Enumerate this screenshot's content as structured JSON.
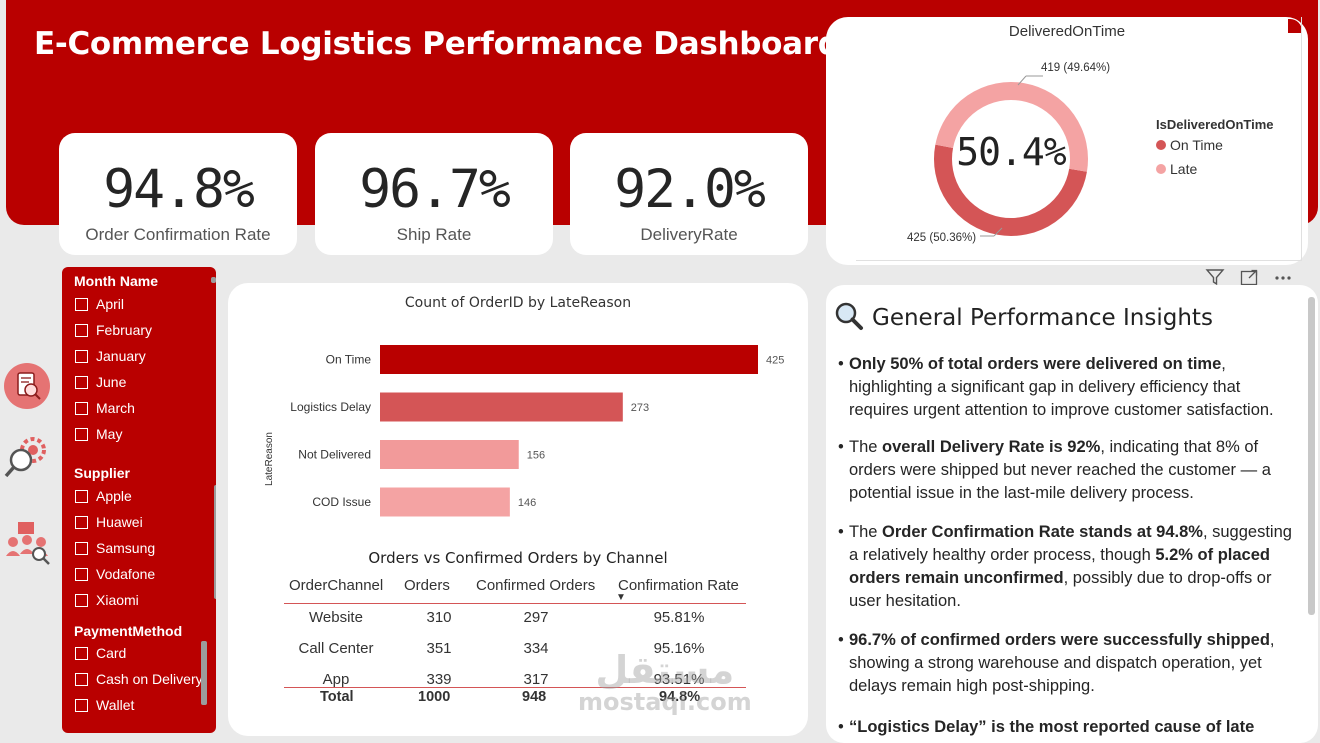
{
  "dashboard": {
    "title": "E-Commerce Logistics Performance Dashboard"
  },
  "kpis": [
    {
      "value": "94.8%",
      "label": "Order Confirmation Rate"
    },
    {
      "value": "96.7%",
      "label": "Ship Rate"
    },
    {
      "value": "92.0%",
      "label": "DeliveryRate"
    }
  ],
  "donut": {
    "title": "DeliveredOnTime",
    "center_label": "50.4%",
    "legend_title": "IsDeliveredOnTime",
    "callout_late": "419 (49.64%)",
    "callout_ontime": "425 (50.36%)"
  },
  "slicers": {
    "month": {
      "title": "Month Name",
      "items": [
        "April",
        "February",
        "January",
        "June",
        "March",
        "May"
      ]
    },
    "supplier": {
      "title": "Supplier",
      "items": [
        "Apple",
        "Huawei",
        "Samsung",
        "Vodafone",
        "Xiaomi"
      ]
    },
    "payment": {
      "title": "PaymentMethod",
      "items": [
        "Card",
        "Cash on Delivery",
        "Wallet"
      ]
    }
  },
  "toolbar": {
    "filter_icon": "filter-icon",
    "focus_icon": "focus-mode-icon",
    "more_icon": "more-options-icon"
  },
  "side_nav": [
    "report-icon",
    "settings-search-icon",
    "team-icon"
  ],
  "chart_data": [
    {
      "type": "pie",
      "title": "DeliveredOnTime",
      "legend_title": "IsDeliveredOnTime",
      "categories": [
        "On Time",
        "Late"
      ],
      "values": [
        425,
        419
      ],
      "labels": [
        "425 (50.36%)",
        "419 (49.64%)"
      ],
      "colors": [
        "#d45556",
        "#f4a3a3"
      ],
      "center_label": "50.4%",
      "legend_position": "right"
    },
    {
      "type": "bar",
      "orientation": "horizontal",
      "title": "Count of OrderID by LateReason",
      "ylabel": "LateReason",
      "categories": [
        "On Time",
        "Logistics Delay",
        "Not Delivered",
        "COD Issue"
      ],
      "values": [
        425,
        273,
        156,
        146
      ],
      "colors": [
        "#b90000",
        "#d45556",
        "#f29a9a",
        "#f4a3a3"
      ],
      "xlim": [
        0,
        425
      ]
    },
    {
      "type": "table",
      "title": "Orders vs Confirmed Orders by Channel",
      "columns": [
        "OrderChannel",
        "Orders",
        "Confirmed Orders",
        "Confirmation Rate"
      ],
      "rows": [
        [
          "Website",
          "310",
          "297",
          "95.81%"
        ],
        [
          "Call Center",
          "351",
          "334",
          "95.16%"
        ],
        [
          "App",
          "339",
          "317",
          "93.51%"
        ]
      ],
      "total": [
        "Total",
        "1000",
        "948",
        "94.8%"
      ],
      "sort_indicator": "▼"
    }
  ],
  "insights": {
    "title": "General Performance Insights",
    "bullet": "•",
    "items": [
      {
        "parts": [
          {
            "b": true,
            "t": "Only 50% of total orders were delivered on time"
          },
          {
            "b": false,
            "t": ", highlighting a significant gap in delivery efficiency that requires urgent attention to improve customer satisfaction."
          }
        ]
      },
      {
        "parts": [
          {
            "b": false,
            "t": "The "
          },
          {
            "b": true,
            "t": "overall Delivery Rate is 92%"
          },
          {
            "b": false,
            "t": ", indicating that 8% of orders were shipped but never reached the customer — a potential issue in the last-mile delivery process."
          }
        ]
      },
      {
        "parts": [
          {
            "b": false,
            "t": "The "
          },
          {
            "b": true,
            "t": "Order Confirmation Rate stands at 94.8%"
          },
          {
            "b": false,
            "t": ", suggesting a relatively healthy order process, though "
          },
          {
            "b": true,
            "t": "5.2% of placed orders remain unconfirmed"
          },
          {
            "b": false,
            "t": ", possibly due to drop-offs or user hesitation."
          }
        ]
      },
      {
        "parts": [
          {
            "b": true,
            "t": "96.7% of confirmed orders were successfully shipped"
          },
          {
            "b": false,
            "t": ", showing a strong warehouse and dispatch operation, yet delays remain high post-shipping."
          }
        ]
      },
      {
        "parts": [
          {
            "b": true,
            "t": "“Logistics Delay” is the most reported cause of late"
          }
        ]
      }
    ]
  },
  "watermark": {
    "arabic": "مستقل",
    "latin": "mostaqi.com"
  }
}
